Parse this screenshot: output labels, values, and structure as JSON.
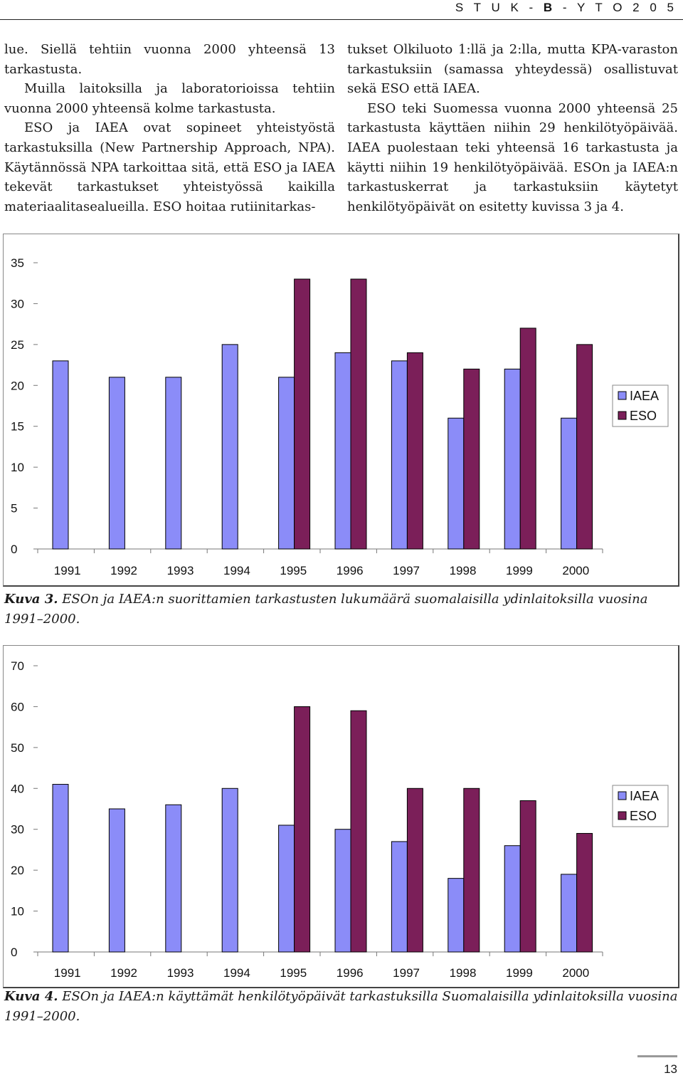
{
  "header": {
    "prefix": "S T U K - ",
    "bold": "B",
    "suffix": " - Y T O 2 0 5"
  },
  "body": {
    "left": [
      "lue. Siellä tehtiin vuonna 2000 yhteensä 13 tarkastusta.",
      "Muilla laitoksilla ja laboratorioissa tehtiin vuonna 2000 yhteensä kolme tarkastusta.",
      "ESO ja IAEA ovat sopineet yhteistyöstä tarkastuksilla (New Partnership Approach, NPA). Käytännössä NPA tarkoittaa sitä, että ESO ja IAEA tekevät tarkastukset yhteistyössä kaikilla materiaalitasealueilla. ESO hoitaa rutiinitarkas-"
    ],
    "right": [
      "tukset Olkiluoto 1:llä ja 2:lla, mutta KPA-varaston tarkastuksiin (samassa yhteydessä) osallistuvat sekä ESO että IAEA.",
      "ESO teki Suomessa vuonna 2000 yhteensä 25 tarkastusta käyttäen niihin 29 henkilötyöpäivää. IAEA puolestaan teki yhteensä 16 tarkastusta ja käytti niihin 19 henkilötyöpäivää. ESOn ja IAEA:n tarkastuskerrat ja tarkastuksiin käytetyt henkilötyöpäivät on esitetty kuvissa 3 ja 4."
    ]
  },
  "chart_data": [
    {
      "type": "bar",
      "categories": [
        "1991",
        "1992",
        "1993",
        "1994",
        "1995",
        "1996",
        "1997",
        "1998",
        "1999",
        "2000"
      ],
      "series": [
        {
          "name": "IAEA",
          "values": [
            23,
            21,
            21,
            25,
            21,
            24,
            23,
            16,
            22,
            16
          ]
        },
        {
          "name": "ESO",
          "values": [
            null,
            null,
            null,
            null,
            33,
            33,
            24,
            22,
            27,
            25
          ]
        }
      ],
      "ylim": [
        0,
        35
      ],
      "yticks": [
        0,
        5,
        10,
        15,
        20,
        25,
        30,
        35
      ],
      "legend": "right",
      "grid": false
    },
    {
      "type": "bar",
      "categories": [
        "1991",
        "1992",
        "1993",
        "1994",
        "1995",
        "1996",
        "1997",
        "1998",
        "1999",
        "2000"
      ],
      "series": [
        {
          "name": "IAEA",
          "values": [
            41,
            35,
            36,
            40,
            31,
            30,
            27,
            18,
            26,
            19
          ]
        },
        {
          "name": "ESO",
          "values": [
            null,
            null,
            null,
            null,
            60,
            59,
            40,
            40,
            37,
            29
          ]
        }
      ],
      "ylim": [
        0,
        70
      ],
      "yticks": [
        0,
        10,
        20,
        30,
        40,
        50,
        60,
        70
      ],
      "legend": "right",
      "grid": false
    }
  ],
  "captions": [
    {
      "label": "Kuva 3.",
      "text": " ESOn ja IAEA:n suorittamien tarkastusten lukumäärä suomalaisilla ydinlaitoksilla vuosina 1991–2000."
    },
    {
      "label": "Kuva 4.",
      "text": " ESOn ja IAEA:n käyttämät henkilötyöpäivät tarkastuksilla Suomalaisilla ydinlaitoksilla vuosina 1991–2000."
    }
  ],
  "colors": {
    "iaea": "#8b8cf8",
    "eso": "#7b1f59"
  },
  "page_number": "13"
}
